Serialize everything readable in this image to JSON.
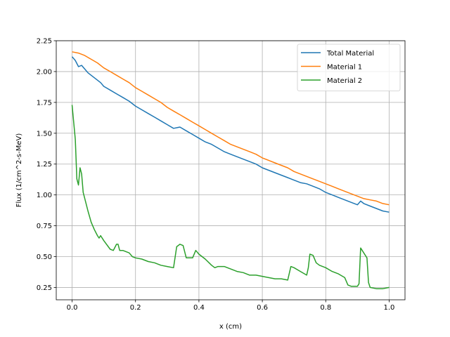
{
  "chart_data": {
    "type": "line",
    "title": "",
    "xlabel": "x (cm)",
    "ylabel": "Flux (1/cm^2-s-MeV)",
    "xlim": [
      -0.05,
      1.05
    ],
    "ylim": [
      0.15,
      2.25
    ],
    "xticks": [
      0.0,
      0.2,
      0.4,
      0.6,
      0.8,
      1.0
    ],
    "xtick_labels": [
      "0.0",
      "0.2",
      "0.4",
      "0.6",
      "0.8",
      "1.0"
    ],
    "yticks": [
      0.25,
      0.5,
      0.75,
      1.0,
      1.25,
      1.5,
      1.75,
      2.0,
      2.25
    ],
    "ytick_labels": [
      "0.25",
      "0.50",
      "0.75",
      "1.00",
      "1.25",
      "1.50",
      "1.75",
      "2.00",
      "2.25"
    ],
    "grid": true,
    "legend_position": "top-right",
    "series": [
      {
        "name": "Total Material",
        "color": "#1f77b4",
        "x": [
          0.0,
          0.01,
          0.02,
          0.03,
          0.04,
          0.05,
          0.06,
          0.07,
          0.08,
          0.09,
          0.1,
          0.12,
          0.14,
          0.16,
          0.18,
          0.2,
          0.22,
          0.24,
          0.26,
          0.28,
          0.3,
          0.32,
          0.34,
          0.36,
          0.38,
          0.4,
          0.42,
          0.44,
          0.46,
          0.48,
          0.5,
          0.52,
          0.54,
          0.56,
          0.58,
          0.6,
          0.62,
          0.64,
          0.66,
          0.68,
          0.7,
          0.72,
          0.74,
          0.76,
          0.78,
          0.8,
          0.82,
          0.84,
          0.86,
          0.88,
          0.9,
          0.91,
          0.92,
          0.94,
          0.96,
          0.98,
          1.0
        ],
        "values": [
          2.12,
          2.09,
          2.04,
          2.05,
          2.02,
          1.99,
          1.97,
          1.95,
          1.93,
          1.91,
          1.88,
          1.85,
          1.82,
          1.79,
          1.76,
          1.72,
          1.69,
          1.66,
          1.63,
          1.6,
          1.57,
          1.54,
          1.55,
          1.52,
          1.49,
          1.46,
          1.43,
          1.41,
          1.38,
          1.35,
          1.33,
          1.31,
          1.29,
          1.27,
          1.25,
          1.22,
          1.2,
          1.18,
          1.16,
          1.14,
          1.12,
          1.1,
          1.09,
          1.07,
          1.05,
          1.02,
          1.0,
          0.98,
          0.96,
          0.94,
          0.92,
          0.95,
          0.93,
          0.91,
          0.89,
          0.87,
          0.86
        ]
      },
      {
        "name": "Material 1",
        "color": "#ff7f0e",
        "x": [
          0.0,
          0.02,
          0.04,
          0.06,
          0.08,
          0.1,
          0.12,
          0.14,
          0.16,
          0.18,
          0.2,
          0.22,
          0.24,
          0.26,
          0.28,
          0.3,
          0.32,
          0.34,
          0.36,
          0.38,
          0.4,
          0.42,
          0.44,
          0.46,
          0.48,
          0.5,
          0.52,
          0.54,
          0.56,
          0.58,
          0.6,
          0.62,
          0.64,
          0.66,
          0.68,
          0.7,
          0.72,
          0.74,
          0.76,
          0.78,
          0.8,
          0.82,
          0.84,
          0.86,
          0.88,
          0.9,
          0.92,
          0.94,
          0.96,
          0.98,
          1.0
        ],
        "values": [
          2.16,
          2.15,
          2.13,
          2.1,
          2.07,
          2.03,
          2.0,
          1.97,
          1.94,
          1.91,
          1.87,
          1.84,
          1.81,
          1.78,
          1.75,
          1.71,
          1.68,
          1.65,
          1.62,
          1.59,
          1.56,
          1.53,
          1.5,
          1.47,
          1.44,
          1.41,
          1.39,
          1.37,
          1.35,
          1.33,
          1.3,
          1.28,
          1.26,
          1.24,
          1.22,
          1.19,
          1.17,
          1.15,
          1.13,
          1.11,
          1.09,
          1.07,
          1.05,
          1.03,
          1.01,
          0.99,
          0.97,
          0.96,
          0.95,
          0.93,
          0.92
        ]
      },
      {
        "name": "Material 2",
        "color": "#2ca02c",
        "x": [
          0.0,
          0.01,
          0.015,
          0.02,
          0.025,
          0.03,
          0.035,
          0.04,
          0.05,
          0.06,
          0.07,
          0.08,
          0.085,
          0.09,
          0.1,
          0.12,
          0.13,
          0.14,
          0.145,
          0.15,
          0.16,
          0.18,
          0.19,
          0.2,
          0.22,
          0.24,
          0.26,
          0.28,
          0.3,
          0.32,
          0.33,
          0.34,
          0.35,
          0.36,
          0.37,
          0.38,
          0.39,
          0.4,
          0.42,
          0.44,
          0.45,
          0.46,
          0.48,
          0.5,
          0.52,
          0.54,
          0.56,
          0.58,
          0.6,
          0.62,
          0.64,
          0.66,
          0.68,
          0.69,
          0.7,
          0.72,
          0.74,
          0.745,
          0.75,
          0.76,
          0.77,
          0.78,
          0.8,
          0.82,
          0.84,
          0.86,
          0.87,
          0.88,
          0.9,
          0.905,
          0.91,
          0.93,
          0.935,
          0.94,
          0.96,
          0.98,
          1.0
        ],
        "values": [
          1.73,
          1.45,
          1.13,
          1.08,
          1.22,
          1.17,
          1.02,
          0.97,
          0.87,
          0.78,
          0.72,
          0.67,
          0.65,
          0.67,
          0.63,
          0.56,
          0.55,
          0.6,
          0.6,
          0.55,
          0.55,
          0.53,
          0.5,
          0.49,
          0.48,
          0.46,
          0.45,
          0.43,
          0.42,
          0.41,
          0.58,
          0.6,
          0.59,
          0.49,
          0.49,
          0.49,
          0.55,
          0.52,
          0.48,
          0.43,
          0.41,
          0.42,
          0.42,
          0.4,
          0.38,
          0.37,
          0.35,
          0.35,
          0.34,
          0.33,
          0.32,
          0.32,
          0.31,
          0.42,
          0.41,
          0.38,
          0.35,
          0.41,
          0.52,
          0.51,
          0.45,
          0.43,
          0.41,
          0.38,
          0.36,
          0.33,
          0.27,
          0.26,
          0.26,
          0.28,
          0.57,
          0.49,
          0.29,
          0.25,
          0.24,
          0.24,
          0.25
        ]
      }
    ]
  }
}
